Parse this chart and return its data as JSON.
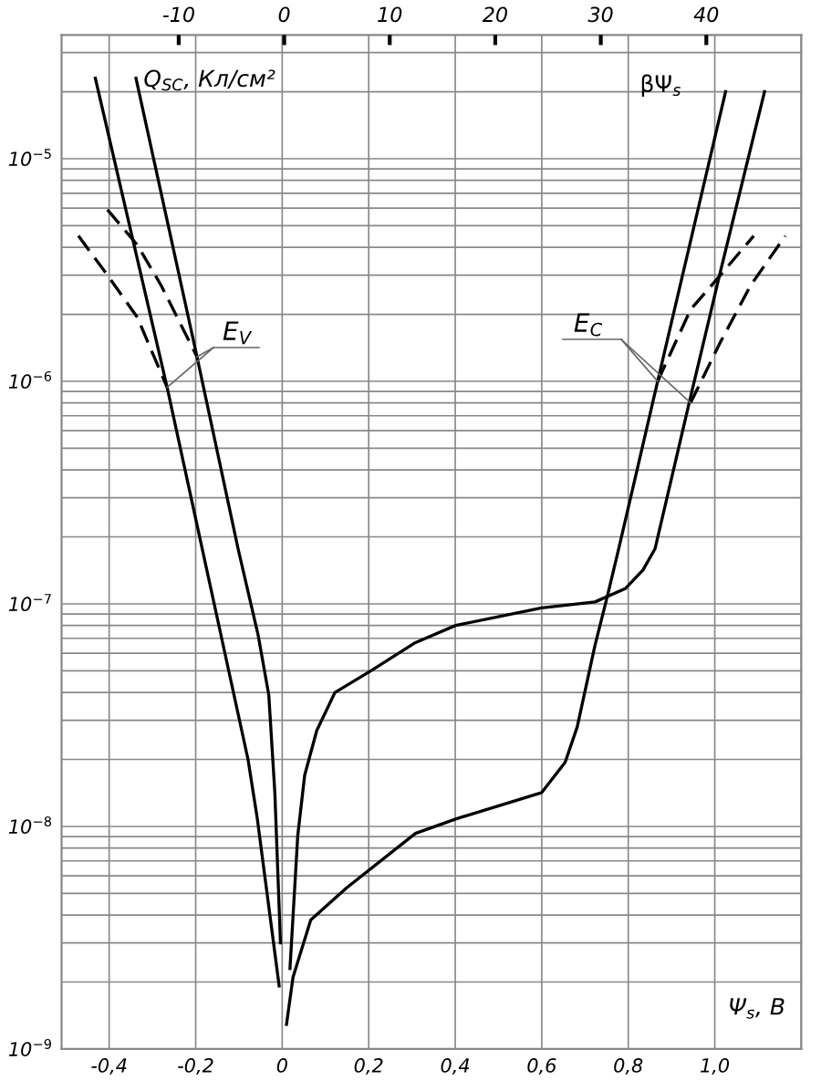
{
  "chart_data": {
    "type": "line",
    "ylabel": "Q$_{SC}$, Кл/см²",
    "xlabel": "Ψ$_{s}$, В",
    "x2label": "βΨ$_{s}$",
    "log": "y",
    "grid": true,
    "marker": "none",
    "xlim": [
      -0.51,
      1.2
    ],
    "xticks": [
      {
        "value": -0.4,
        "label": "-0,4"
      },
      {
        "value": -0.2,
        "label": "-0,2"
      },
      0,
      {
        "value": 0.2,
        "label": "0,2"
      },
      {
        "value": 0.4,
        "label": "0,4"
      },
      {
        "value": 0.6,
        "label": "0,6"
      },
      {
        "value": 0.8,
        "label": "0,8"
      },
      {
        "value": 1.0,
        "label": "1,0"
      },
      {
        "value": 1.2,
        "label": null
      }
    ],
    "x2lim": [
      -21.1,
      49.0
    ],
    "x2ticks": [
      -10,
      0,
      10,
      20,
      30,
      40
    ],
    "ylim": [
      1e-09,
      3.6e-05
    ],
    "yticks": [
      {
        "value": 1e-09,
        "label": "10$^{−9}$"
      },
      {
        "value": 1e-08,
        "label": "10$^{−8}$"
      },
      {
        "value": 1e-07,
        "label": "10$^{−7}$"
      },
      {
        "value": 1e-06,
        "label": "10$^{−6}$"
      },
      {
        "value": 1e-05,
        "label": "10$^{−5}$"
      }
    ],
    "series": [
      {
        "color": "#000000",
        "line_style": "solid",
        "x": [
          -0.432,
          -0.266,
          -0.185,
          -0.079,
          -0.058,
          -0.007
        ],
        "values": [
          2.3e-05,
          9.4e-07,
          1.77e-07,
          2e-08,
          1.1e-08,
          1.92e-09
        ]
      },
      {
        "color": "#000000",
        "line_style": "solid",
        "x": [
          -0.338,
          -0.197,
          -0.102,
          -0.056,
          -0.031,
          -0.017,
          -0.004
        ],
        "values": [
          2.3e-05,
          1.29e-06,
          1.77e-07,
          7.3e-08,
          3.9e-08,
          1.42e-08,
          3e-09
        ]
      },
      {
        "color": "#000000",
        "line_style": "solid",
        "x": [
          0.01,
          0.025,
          0.066,
          0.149,
          0.308,
          0.401,
          0.6,
          0.654,
          0.682,
          0.723,
          0.751,
          0.778,
          0.868,
          1.025
        ],
        "values": [
          1.29e-09,
          2.1e-09,
          3.8e-09,
          5.3e-09,
          9.3e-09,
          1.08e-08,
          1.42e-08,
          1.94e-08,
          2.8e-08,
          6.5e-08,
          1.07e-07,
          1.77e-07,
          1e-06,
          2e-05
        ]
      },
      {
        "color": "#000000",
        "line_style": "solid",
        "x": [
          0.018,
          0.036,
          0.052,
          0.08,
          0.122,
          0.205,
          0.308,
          0.401,
          0.6,
          0.723,
          0.793,
          0.834,
          0.862,
          0.944,
          1.011,
          1.115
        ],
        "values": [
          2.3e-09,
          9.1e-09,
          1.7e-08,
          2.7e-08,
          4e-08,
          5e-08,
          6.7e-08,
          8e-08,
          9.6e-08,
          1.02e-07,
          1.17e-07,
          1.42e-07,
          1.77e-07,
          8.5e-07,
          3e-06,
          2e-05
        ]
      },
      {
        "color": "#000000",
        "line_style": "dashed",
        "x": [
          -0.471,
          -0.404,
          -0.335,
          -0.266
        ],
        "values": [
          4.5e-06,
          3e-06,
          1.94e-06,
          9.4e-07
        ]
      },
      {
        "color": "#000000",
        "line_style": "dashed",
        "x": [
          -0.404,
          -0.335,
          -0.28,
          -0.197
        ],
        "values": [
          5.9e-06,
          4.1e-06,
          2.7e-06,
          1.29e-06
        ]
      },
      {
        "color": "#000000",
        "line_style": "dashed",
        "x": [
          0.868,
          0.944,
          1.013,
          1.09
        ],
        "values": [
          1e-06,
          2.1e-06,
          3e-06,
          4.5e-06
        ]
      },
      {
        "color": "#000000",
        "line_style": "dashed",
        "x": [
          0.944,
          1.013,
          1.083,
          1.163
        ],
        "values": [
          8e-07,
          1.5e-06,
          2.7e-06,
          4.5e-06
        ]
      }
    ],
    "annotations": [
      {
        "text": "E$_{V}$",
        "x": -0.197,
        "y": 1.29e-06
      },
      {
        "text": "E$_{C}$",
        "x": 0.868,
        "y": 1e-06
      }
    ]
  }
}
